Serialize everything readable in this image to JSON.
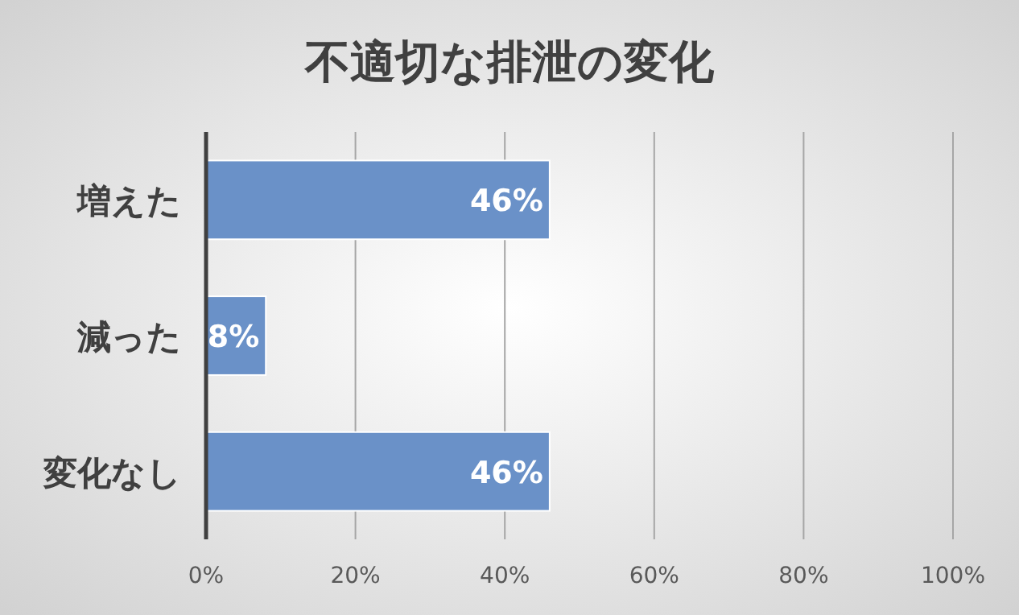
{
  "chart_data": {
    "type": "bar",
    "orientation": "horizontal",
    "title": "不適切な排泄の変化",
    "categories": [
      "増えた",
      "減った",
      "変化なし"
    ],
    "values": [
      46,
      8,
      46
    ],
    "color": "#6a91c8",
    "value_labels": [
      "46%",
      "8%",
      "46%"
    ],
    "xlim": [
      0,
      100
    ],
    "xticks": [
      {
        "value": 0,
        "label": "0%"
      },
      {
        "value": 20,
        "label": "20%"
      },
      {
        "value": 40,
        "label": "40%"
      },
      {
        "value": 60,
        "label": "60%"
      },
      {
        "value": 80,
        "label": "80%"
      },
      {
        "value": 100,
        "label": "100%"
      }
    ],
    "grid": "x"
  }
}
